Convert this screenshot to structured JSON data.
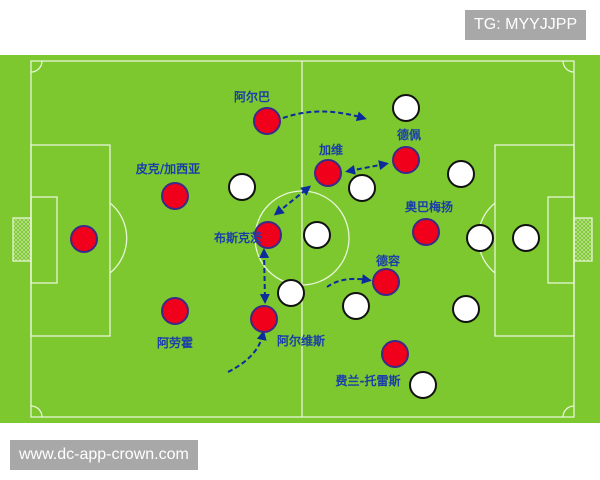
{
  "watermark_top": "TG: MYYJJPP",
  "watermark_bottom": "www.dc-app-crown.com",
  "colors": {
    "pitch": "#7cc82e",
    "line": "#e8f5d8",
    "team_red": "#f0001a",
    "team_red_outline": "#3a2a8a",
    "team_white": "#ffffff",
    "arrow": "#0b2c9c",
    "label": "#1a3fa8"
  },
  "players_red": [
    {
      "name": "阿尔巴"
    },
    {
      "name": "皮克/加西亚"
    },
    {
      "name": ""
    },
    {
      "name": "布斯克茨"
    },
    {
      "name": "加维"
    },
    {
      "name": "德佩"
    },
    {
      "name": "奥巴梅扬"
    },
    {
      "name": "德容"
    },
    {
      "name": "阿劳霍"
    },
    {
      "name": "阿尔维斯"
    },
    {
      "name": "费兰-托雷斯"
    }
  ],
  "players_white_count": 11
}
